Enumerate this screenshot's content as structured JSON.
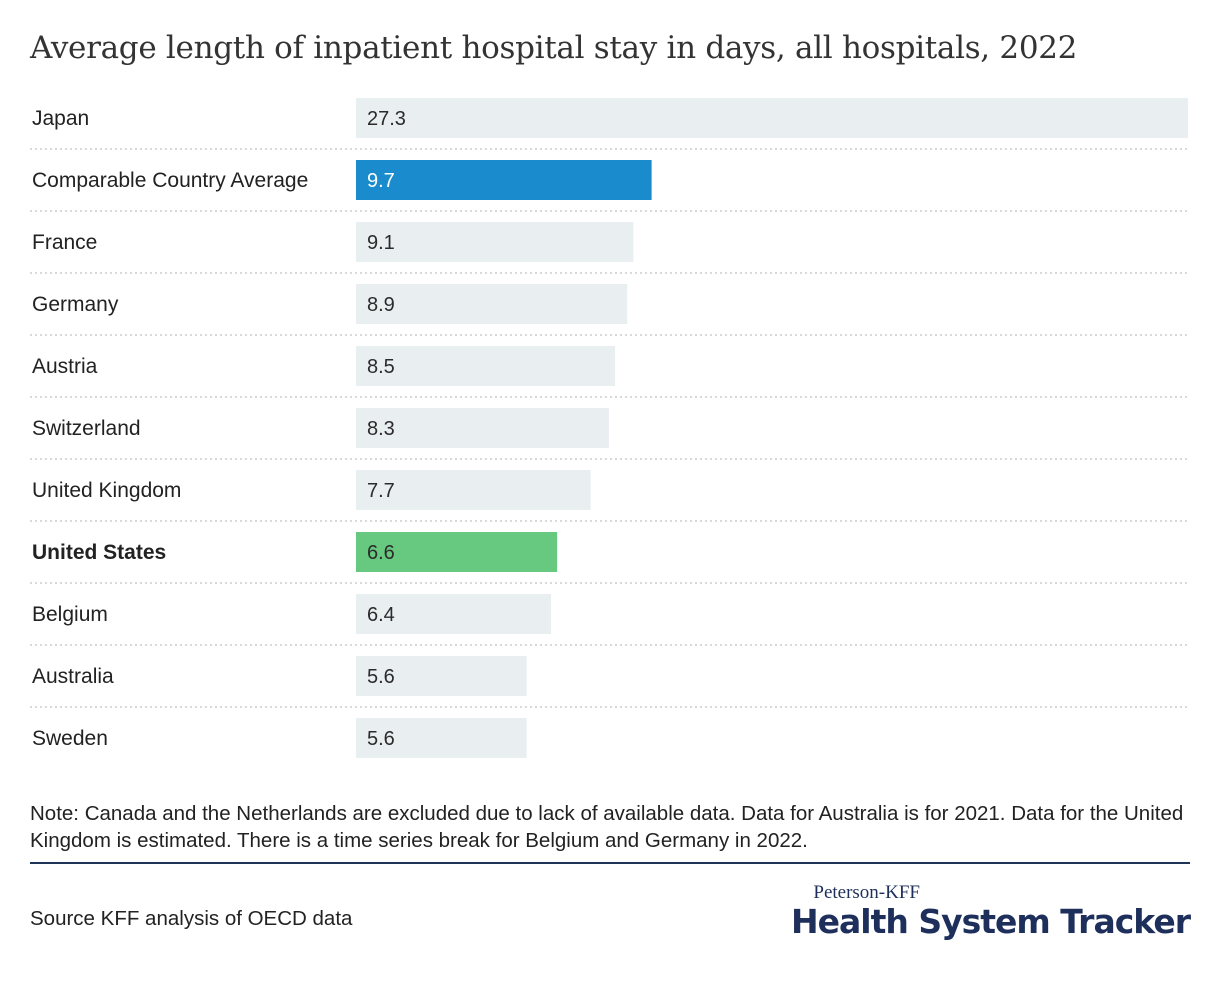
{
  "title": "Average length of inpatient hospital stay in days, all hospitals, 2022",
  "chart_data": {
    "type": "bar",
    "orientation": "horizontal",
    "title": "Average length of inpatient hospital stay in days, all hospitals, 2022",
    "categories": [
      "Japan",
      "Comparable Country Average",
      "France",
      "Germany",
      "Austria",
      "Switzerland",
      "United Kingdom",
      "United States",
      "Belgium",
      "Australia",
      "Sweden"
    ],
    "values": [
      27.3,
      9.7,
      9.1,
      8.9,
      8.5,
      8.3,
      7.7,
      6.6,
      6.4,
      5.6,
      5.6
    ],
    "value_labels": [
      "27.3",
      "9.7",
      "9.1",
      "8.9",
      "8.5",
      "8.3",
      "7.7",
      "6.6",
      "6.4",
      "5.6",
      "5.6"
    ],
    "xlim": [
      0,
      27.3
    ],
    "grid": false,
    "highlight": {
      "Comparable Country Average": "#1a8bcd",
      "United States": "#66c97f"
    },
    "bold_categories": [
      "United States"
    ],
    "default_bar_color": "#e9eef1"
  },
  "note": "Note: Canada and the Netherlands are excluded due to lack of available data. Data for Australia is for 2021. Data for the United Kingdom is estimated. There is a time series break for Belgium and Germany in 2022.",
  "source": "Source KFF analysis of OECD data",
  "brand": {
    "top": "Peterson-KFF",
    "main": "Health System Tracker",
    "color": "#1d2f5a"
  }
}
